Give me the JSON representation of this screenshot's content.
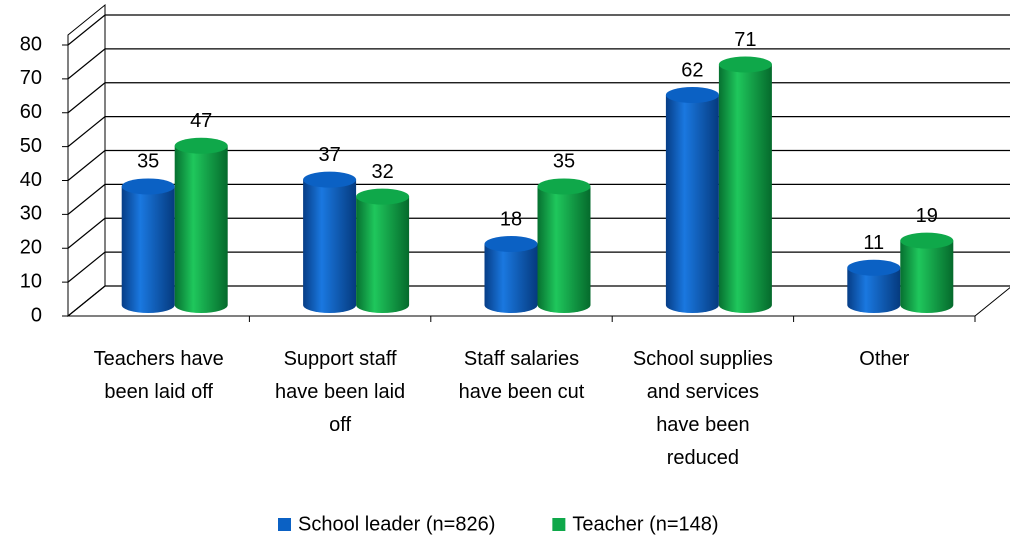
{
  "chart_data": {
    "type": "bar3d",
    "categories": [
      "Teachers have been laid off",
      "Support staff have been laid off",
      "Staff salaries have been cut",
      "School supplies and services have been reduced",
      "Other"
    ],
    "series": [
      {
        "name": "School leader (n=826)",
        "color": "#0b61c4",
        "values": [
          35,
          37,
          18,
          62,
          11
        ]
      },
      {
        "name": "Teacher (n=148)",
        "color": "#0fa84a",
        "values": [
          47,
          32,
          35,
          71,
          19
        ]
      }
    ],
    "ylim": [
      0,
      80
    ],
    "yticks": [
      0,
      10,
      20,
      30,
      40,
      50,
      60,
      70,
      80
    ],
    "grid": true,
    "legend": "bottom"
  }
}
